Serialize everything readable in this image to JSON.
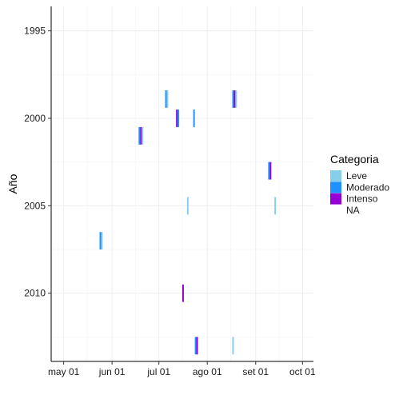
{
  "chart_data": {
    "type": "bar",
    "xlabel": "",
    "ylabel": "Año",
    "x_ticks": [
      {
        "date": "2000-05-01",
        "label": "may 01"
      },
      {
        "date": "2000-06-01",
        "label": "jun 01"
      },
      {
        "date": "2000-07-01",
        "label": "jul 01"
      },
      {
        "date": "2000-08-01",
        "label": "ago 01"
      },
      {
        "date": "2000-09-01",
        "label": "set 01"
      },
      {
        "date": "2000-10-01",
        "label": "oct 01"
      }
    ],
    "xlim": [
      "2000-04-23",
      "2000-10-08"
    ],
    "y_ticks": [
      1995,
      2000,
      2005,
      2010
    ],
    "ylim": [
      2013.9,
      1993.6
    ],
    "grid": true,
    "legend": {
      "title": "Categoria",
      "placement": "right",
      "entries": [
        {
          "label": "Leve",
          "color": "#87ceeb"
        },
        {
          "label": "Moderado",
          "color": "#1e90ff"
        },
        {
          "label": "Intenso",
          "color": "#9400d3"
        },
        {
          "label": "NA",
          "color": null
        }
      ]
    },
    "events": [
      {
        "year": 1998.9,
        "segments": [
          [
            "2000-07-05",
            "Moderado"
          ],
          [
            "2000-07-06",
            "Leve"
          ]
        ]
      },
      {
        "year": 1998.9,
        "segments": [
          [
            "2000-08-17",
            "Moderado"
          ],
          [
            "2000-08-18",
            "Intenso"
          ],
          [
            "2000-08-19",
            "Leve"
          ]
        ]
      },
      {
        "year": 2000.0,
        "segments": [
          [
            "2000-07-12",
            "Intenso"
          ],
          [
            "2000-07-13",
            "Moderado"
          ]
        ]
      },
      {
        "year": 2000.0,
        "segments": [
          [
            "2000-07-23",
            "Moderado"
          ]
        ]
      },
      {
        "year": 2001.0,
        "segments": [
          [
            "2000-06-18",
            "Moderado"
          ],
          [
            "2000-06-19",
            "Intenso"
          ],
          [
            "2000-06-20",
            "Leve"
          ]
        ]
      },
      {
        "year": 2003.0,
        "segments": [
          [
            "2000-09-09",
            "Moderado"
          ],
          [
            "2000-09-10",
            "Intenso"
          ]
        ]
      },
      {
        "year": 2005.0,
        "segments": [
          [
            "2000-07-19",
            "Leve"
          ]
        ]
      },
      {
        "year": 2005.0,
        "segments": [
          [
            "2000-09-13",
            "Leve"
          ]
        ]
      },
      {
        "year": 2007.0,
        "segments": [
          [
            "2000-05-24",
            "Moderado"
          ],
          [
            "2000-05-25",
            "Leve"
          ]
        ]
      },
      {
        "year": 2010.0,
        "segments": [
          [
            "2000-07-16",
            "Intenso"
          ]
        ]
      },
      {
        "year": 2013.0,
        "segments": [
          [
            "2000-07-24",
            "Moderado"
          ],
          [
            "2000-07-25",
            "Intenso"
          ]
        ]
      },
      {
        "year": 2013.0,
        "segments": [
          [
            "2000-08-17",
            "Leve"
          ]
        ]
      }
    ]
  }
}
